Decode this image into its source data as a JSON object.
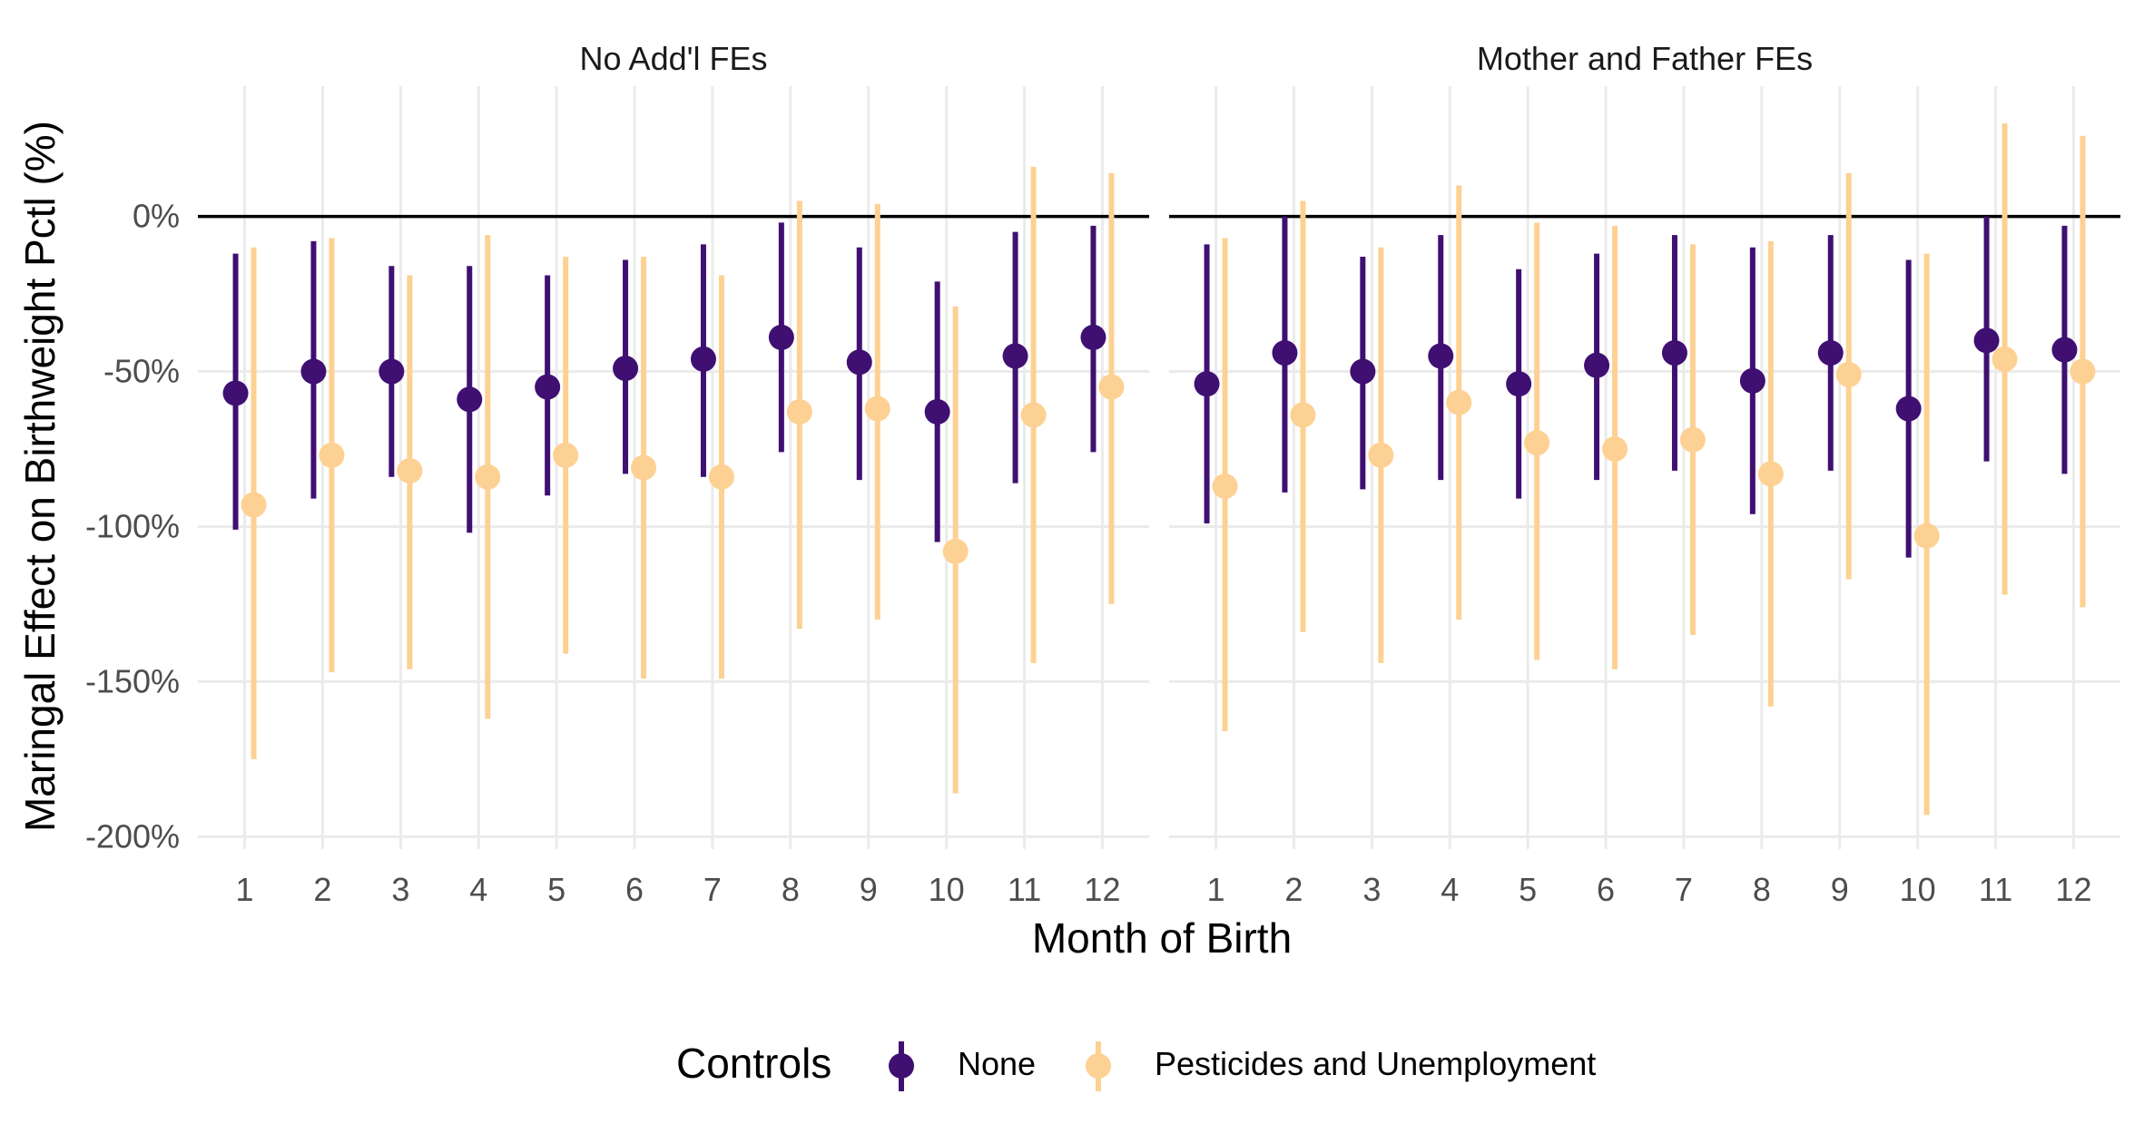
{
  "chart_data": {
    "type": "scatter",
    "subtype": "pointrange",
    "xlabel": "Month of Birth",
    "ylabel": "Maringal Effect on Birthweight Pctl (%)",
    "x_ticks": [
      "1",
      "2",
      "3",
      "4",
      "5",
      "6",
      "7",
      "8",
      "9",
      "10",
      "11",
      "12"
    ],
    "y_ticks": [
      "0%",
      "-50%",
      "-100%",
      "-150%",
      "-200%"
    ],
    "y_tick_values": [
      0,
      -50,
      -100,
      -150,
      -200
    ],
    "ylim": [
      -204,
      42
    ],
    "xlim": [
      0.4,
      12.6
    ],
    "reference_line_y": 0,
    "grid": true,
    "legend": {
      "title": "Controls",
      "position": "bottom",
      "entries": [
        "None",
        "Pesticides and Unemployment"
      ]
    },
    "colors": {
      "None": "#3f0f72",
      "Pesticides and Unemployment": "#fdd193"
    },
    "panels": [
      {
        "title": "No Add'l FEs",
        "series": [
          {
            "name": "None",
            "estimate": [
              -57,
              -50,
              -50,
              -59,
              -55,
              -49,
              -46,
              -39,
              -47,
              -63,
              -45,
              -39
            ],
            "lower": [
              -101,
              -91,
              -84,
              -102,
              -90,
              -83,
              -84,
              -76,
              -85,
              -105,
              -86,
              -76
            ],
            "upper": [
              -12,
              -8,
              -16,
              -16,
              -19,
              -14,
              -9,
              -2,
              -10,
              -21,
              -5,
              -3
            ]
          },
          {
            "name": "Pesticides and Unemployment",
            "estimate": [
              -93,
              -77,
              -82,
              -84,
              -77,
              -81,
              -84,
              -63,
              -62,
              -108,
              -64,
              -55
            ],
            "lower": [
              -175,
              -147,
              -146,
              -162,
              -141,
              -149,
              -149,
              -133,
              -130,
              -186,
              -144,
              -125
            ],
            "upper": [
              -10,
              -7,
              -19,
              -6,
              -13,
              -13,
              -19,
              5,
              4,
              -29,
              16,
              14
            ]
          }
        ]
      },
      {
        "title": "Mother and Father FEs",
        "series": [
          {
            "name": "None",
            "estimate": [
              -54,
              -44,
              -50,
              -45,
              -54,
              -48,
              -44,
              -53,
              -44,
              -62,
              -40,
              -43
            ],
            "lower": [
              -99,
              -89,
              -88,
              -85,
              -91,
              -85,
              -82,
              -96,
              -82,
              -110,
              -79,
              -83
            ],
            "upper": [
              -9,
              0,
              -13,
              -6,
              -17,
              -12,
              -6,
              -10,
              -6,
              -14,
              0,
              -3
            ]
          },
          {
            "name": "Pesticides and Unemployment",
            "estimate": [
              -87,
              -64,
              -77,
              -60,
              -73,
              -75,
              -72,
              -83,
              -51,
              -103,
              -46,
              -50
            ],
            "lower": [
              -166,
              -134,
              -144,
              -130,
              -143,
              -146,
              -135,
              -158,
              -117,
              -193,
              -122,
              -126
            ],
            "upper": [
              -7,
              5,
              -10,
              10,
              -2,
              -3,
              -9,
              -8,
              14,
              -12,
              30,
              26
            ]
          }
        ]
      }
    ]
  }
}
